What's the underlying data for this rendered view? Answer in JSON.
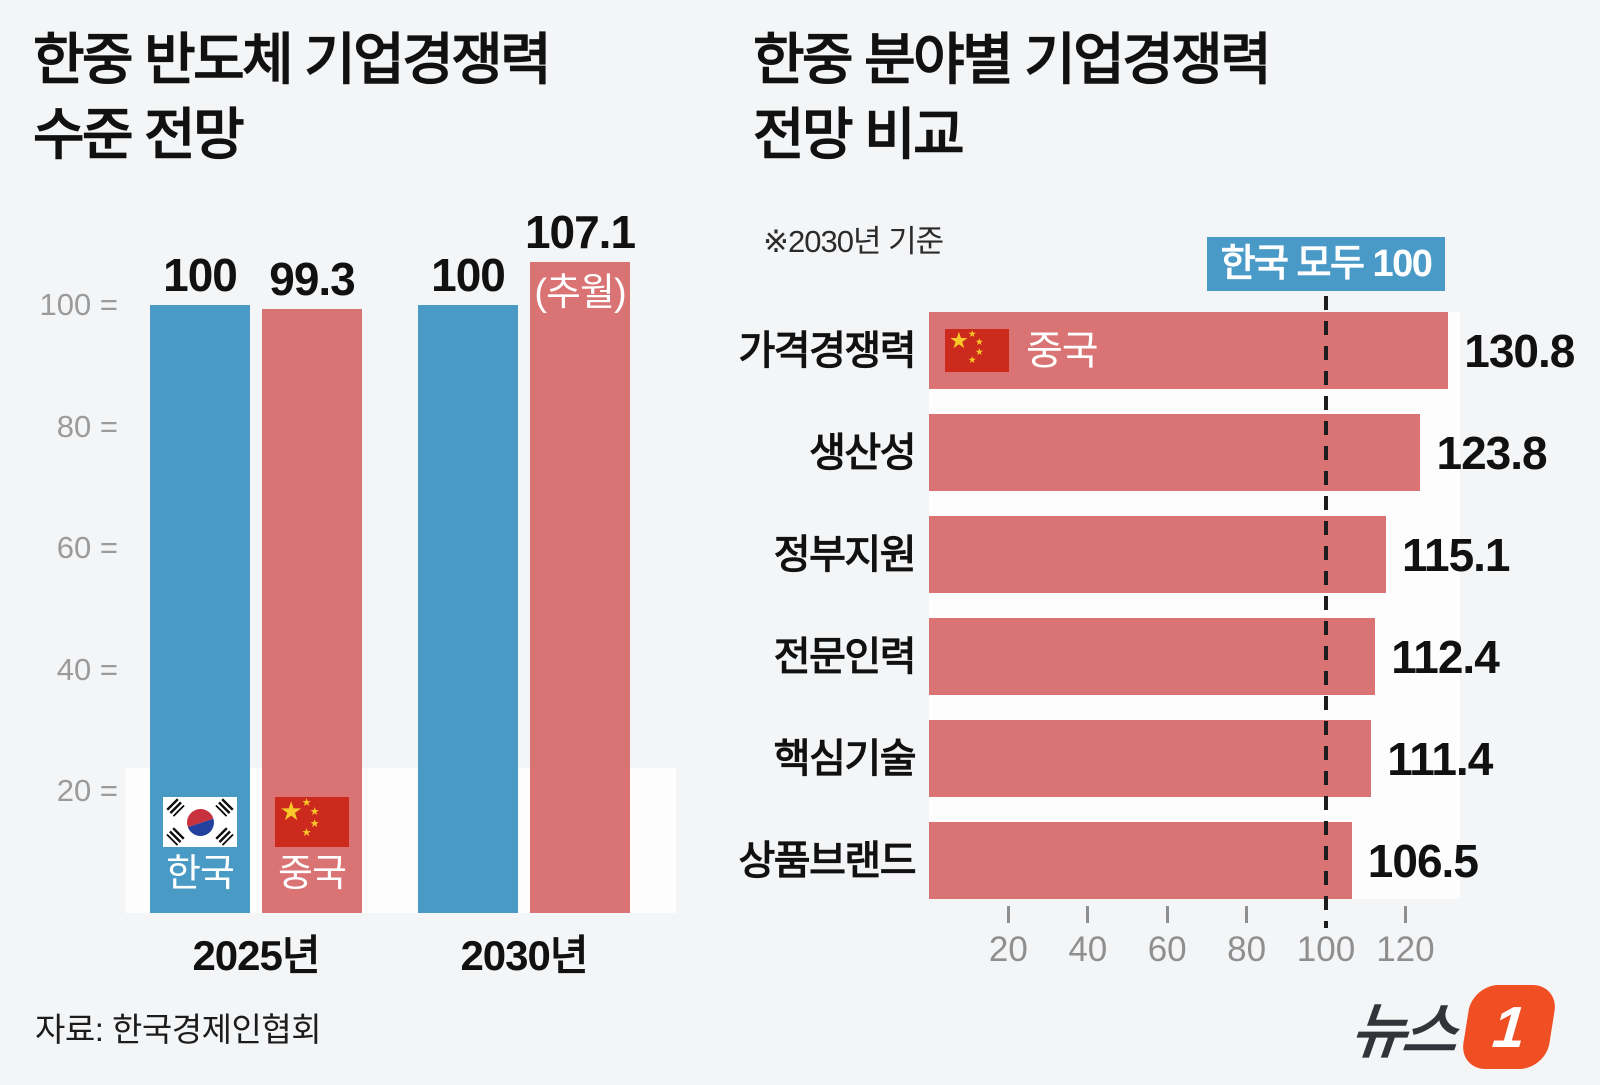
{
  "left_chart": {
    "title": "한중 반도체 기업경쟁력\n수준 전망"
  },
  "right_chart": {
    "title": "한중 분야별 기업경쟁력\n전망 비교",
    "note": "※2030년 기준",
    "badge": "한국 모두 100",
    "series_label": "중국"
  },
  "source": "자료: 한국경제인협회",
  "logo": {
    "text": "뉴스",
    "one": "1"
  },
  "colors": {
    "background": "#f4f5f7",
    "korea_blue": "#4a9ac6",
    "china_red": "#da7373",
    "badge_blue": "#4a9ac8",
    "logo_orange": "#f04e23",
    "flag_cn_red": "#cd2a1e",
    "flag_star_yellow": "#f8c929",
    "taeguk_red": "#c8313e",
    "taeguk_blue": "#23409f",
    "tick_gray": "#8f8f8f"
  },
  "chart_data": [
    {
      "type": "bar",
      "title": "한중 반도체 기업경쟁력 수준 전망",
      "categories": [
        "2025년",
        "2030년"
      ],
      "series": [
        {
          "name": "한국",
          "values": [
            100,
            100
          ]
        },
        {
          "name": "중국",
          "values": [
            99.3,
            107.1
          ]
        }
      ],
      "annotations": [
        {
          "category": "2030년",
          "series": "중국",
          "text": "(추월)"
        }
      ],
      "ylim": [
        0,
        110
      ],
      "yticks": [
        20,
        40,
        60,
        80,
        100
      ],
      "grid": false,
      "legend": "flags-inside-2025-bars"
    },
    {
      "type": "bar",
      "orientation": "horizontal",
      "title": "한중 분야별 기업경쟁력 전망 비교",
      "subtitle": "※2030년 기준",
      "categories": [
        "가격경쟁력",
        "생산성",
        "정부지원",
        "전문인력",
        "핵심기술",
        "상품브랜드"
      ],
      "series": [
        {
          "name": "중국",
          "values": [
            130.8,
            123.8,
            115.1,
            112.4,
            111.4,
            106.5
          ]
        }
      ],
      "xticks": [
        20,
        40,
        60,
        80,
        100,
        120
      ],
      "xlim": [
        0,
        134
      ],
      "reference_line": {
        "value": 100,
        "label": "한국 모두 100"
      },
      "grid": false,
      "legend": "flag-inside-first-bar"
    }
  ]
}
